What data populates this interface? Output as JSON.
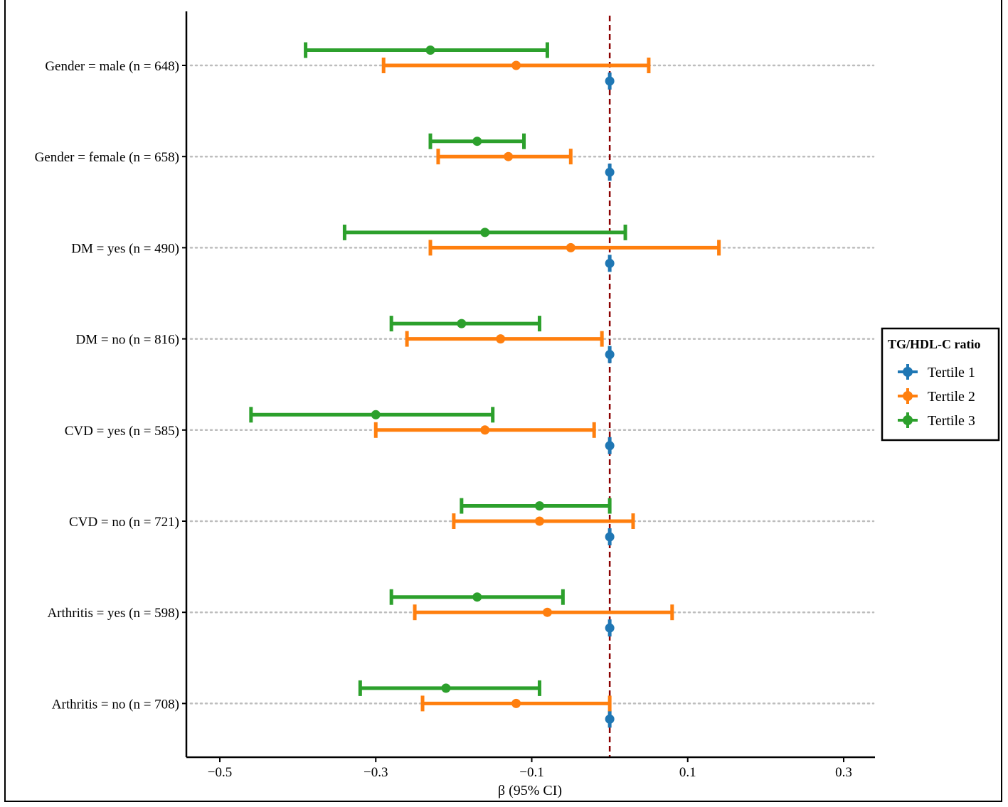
{
  "chart_data": {
    "type": "forest",
    "title": "",
    "xlabel": "β (95% CI)",
    "ylabel": "",
    "xlim": [
      -0.545,
      0.34
    ],
    "x_ticks": [
      -0.5,
      -0.3,
      -0.1,
      0.1,
      0.3
    ],
    "x_tick_labels": [
      "−0.5",
      "−0.3",
      "−0.1",
      "0.1",
      "0.3"
    ],
    "reference_line": 0,
    "reference_line_color": "#8b0000",
    "grid": "horizontal dotted at each subgroup",
    "legend": {
      "title": "TG/HDL-C ratio",
      "placement": "right"
    },
    "categories": [
      "Gender = male (n = 648)",
      "Gender = female (n = 658)",
      "DM = yes (n = 490)",
      "DM = no (n = 816)",
      "CVD = yes (n = 585)",
      "CVD = no (n = 721)",
      "Arthritis = yes (n = 598)",
      "Arthritis = no (n = 708)"
    ],
    "series": [
      {
        "name": "Tertile 1",
        "color": "#1f77b4",
        "estimate": [
          0,
          0,
          0,
          0,
          0,
          0,
          0,
          0
        ],
        "lower": [
          0,
          0,
          0,
          0,
          0,
          0,
          0,
          0
        ],
        "upper": [
          0,
          0,
          0,
          0,
          0,
          0,
          0,
          0
        ]
      },
      {
        "name": "Tertile 2",
        "color": "#ff7f0e",
        "estimate": [
          -0.12,
          -0.13,
          -0.05,
          -0.14,
          -0.16,
          -0.09,
          -0.08,
          -0.12
        ],
        "lower": [
          -0.29,
          -0.22,
          -0.23,
          -0.26,
          -0.3,
          -0.2,
          -0.25,
          -0.24
        ],
        "upper": [
          0.05,
          -0.05,
          0.14,
          -0.01,
          -0.02,
          0.03,
          0.08,
          0.0
        ]
      },
      {
        "name": "Tertile 3",
        "color": "#2ca02c",
        "estimate": [
          -0.23,
          -0.17,
          -0.16,
          -0.19,
          -0.3,
          -0.09,
          -0.17,
          -0.21
        ],
        "lower": [
          -0.39,
          -0.23,
          -0.34,
          -0.28,
          -0.46,
          -0.19,
          -0.28,
          -0.32
        ],
        "upper": [
          -0.08,
          -0.11,
          0.02,
          -0.09,
          -0.15,
          0.0,
          -0.06,
          -0.09
        ]
      }
    ]
  }
}
